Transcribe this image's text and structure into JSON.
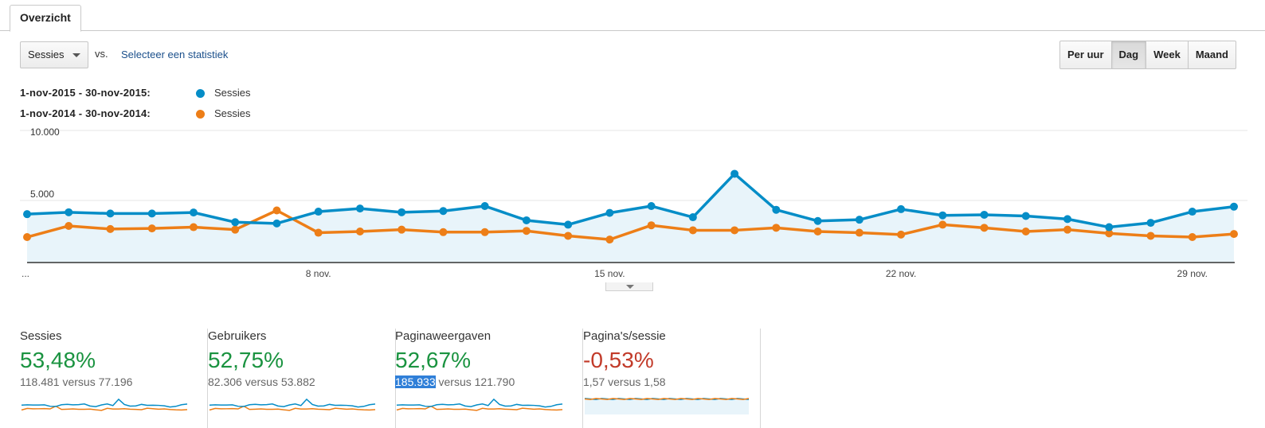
{
  "tabs": [
    {
      "label": "Overzicht"
    }
  ],
  "controls": {
    "metric_select": "Sessies",
    "vs_label": "vs.",
    "compare_link": "Selecteer een statistiek",
    "periods": [
      {
        "label": "Per uur",
        "active": false
      },
      {
        "label": "Dag",
        "active": true
      },
      {
        "label": "Week",
        "active": false
      },
      {
        "label": "Maand",
        "active": false
      }
    ]
  },
  "legend": [
    {
      "range": "1-nov-2015 - 30-nov-2015:",
      "name": "Sessies",
      "color": "#058dc7"
    },
    {
      "range": "1-nov-2014 - 30-nov-2014:",
      "name": "Sessies",
      "color": "#ed7e17"
    }
  ],
  "chart_data": {
    "type": "line",
    "y_ticks": [
      "10.000",
      "5.000"
    ],
    "ylim": [
      0,
      10000
    ],
    "x_tick_labels": [
      {
        "label": "...",
        "day": 1
      },
      {
        "label": "8 nov.",
        "day": 8
      },
      {
        "label": "15 nov.",
        "day": 15
      },
      {
        "label": "22 nov.",
        "day": 22
      },
      {
        "label": "29 nov.",
        "day": 29
      }
    ],
    "x": [
      1,
      2,
      3,
      4,
      5,
      6,
      7,
      8,
      9,
      10,
      11,
      12,
      13,
      14,
      15,
      16,
      17,
      18,
      19,
      20,
      21,
      22,
      23,
      24,
      25,
      26,
      27,
      28,
      29,
      30
    ],
    "series": [
      {
        "name": "Sessies",
        "color": "#058dc7",
        "fill": true,
        "values": [
          3900,
          4050,
          3950,
          3950,
          4030,
          3250,
          3150,
          4100,
          4350,
          4050,
          4150,
          4550,
          3400,
          3050,
          4000,
          4550,
          3650,
          7150,
          4250,
          3350,
          3450,
          4300,
          3800,
          3850,
          3750,
          3500,
          2850,
          3200,
          4100,
          4500
        ]
      },
      {
        "name": "Sessies",
        "color": "#ed7e17",
        "fill": false,
        "values": [
          2050,
          2950,
          2700,
          2750,
          2850,
          2650,
          4200,
          2400,
          2500,
          2650,
          2450,
          2450,
          2550,
          2150,
          1850,
          3000,
          2600,
          2600,
          2800,
          2500,
          2400,
          2250,
          3050,
          2800,
          2500,
          2650,
          2350,
          2150,
          2050,
          2300
        ]
      }
    ]
  },
  "metrics": [
    {
      "label": "Sessies",
      "value": "53,48%",
      "trend": "pos",
      "current": "118.481",
      "versus": "versus",
      "previous": "77.196",
      "sparkline": "lines"
    },
    {
      "label": "Gebruikers",
      "value": "52,75%",
      "trend": "pos",
      "current": "82.306",
      "versus": "versus",
      "previous": "53.882",
      "sparkline": "lines"
    },
    {
      "label": "Paginaweergaven",
      "value": "52,67%",
      "trend": "pos",
      "current": "185.933",
      "versus": "versus",
      "previous": "121.790",
      "sparkline": "lines",
      "current_highlighted": true
    },
    {
      "label": "Pagina's/sessie",
      "value": "-0,53%",
      "trend": "neg",
      "current": "1,57",
      "versus": "versus",
      "previous": "1,58",
      "sparkline": "area"
    }
  ]
}
